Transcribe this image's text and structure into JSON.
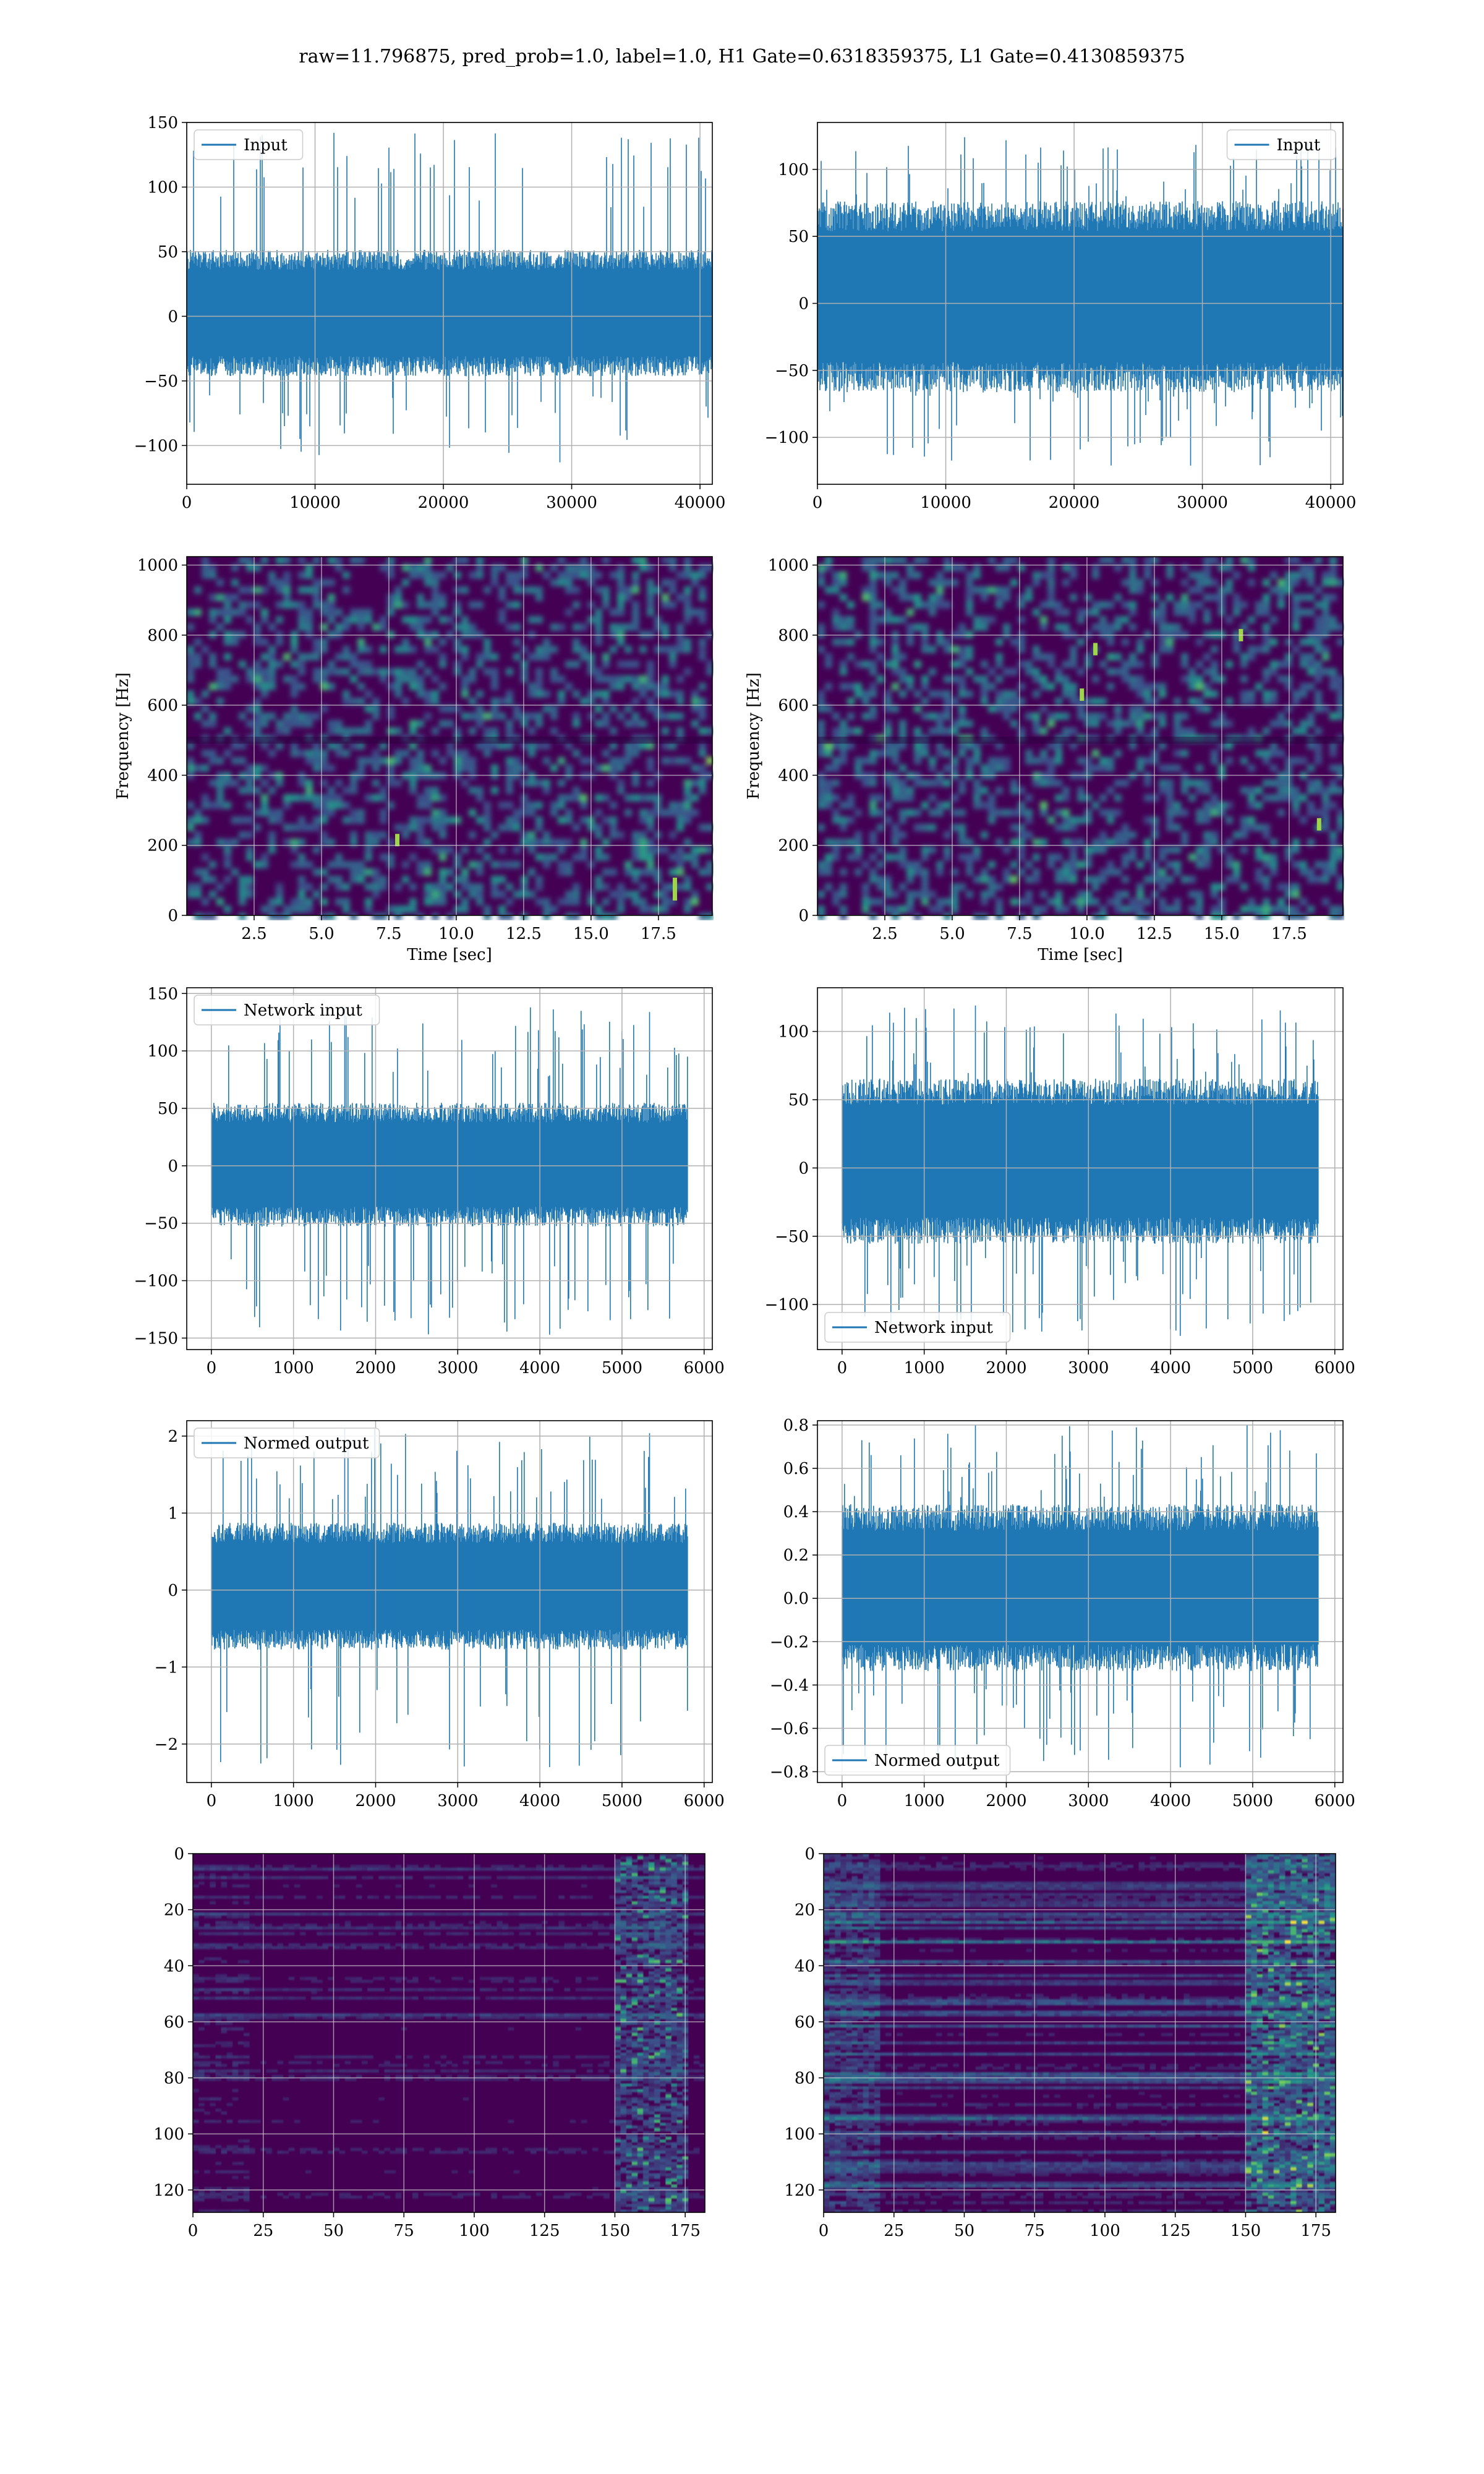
{
  "figure": {
    "suptitle": "raw=11.796875, pred_prob=1.0, label=1.0, H1 Gate=0.6318359375, L1 Gate=0.4130859375"
  },
  "colors": {
    "series": "#1f77b4",
    "grid": "#b0b0b0",
    "viridis_dark": "#440154",
    "viridis_mid": "#21918c",
    "viridis_bright": "#fde725"
  },
  "chart_data": [
    {
      "id": "input-h1",
      "type": "line",
      "legend": "Input",
      "legend_loc": "upper left",
      "xlim": [
        0,
        40960
      ],
      "ylim": [
        -130,
        150
      ],
      "xticks": [
        0,
        10000,
        20000,
        30000,
        40000
      ],
      "yticks": [
        -100,
        -50,
        0,
        50,
        100,
        150
      ],
      "xlabel": "",
      "ylabel": "",
      "envelope": {
        "body": [
          -42,
          47
        ],
        "spikes": [
          -113,
          142
        ]
      },
      "grid": true
    },
    {
      "id": "input-l1",
      "type": "line",
      "legend": "Input",
      "legend_loc": "upper right",
      "xlim": [
        0,
        40960
      ],
      "ylim": [
        -135,
        135
      ],
      "xticks": [
        0,
        10000,
        20000,
        30000,
        40000
      ],
      "yticks": [
        -100,
        -50,
        0,
        50,
        100
      ],
      "xlabel": "",
      "ylabel": "",
      "envelope": {
        "body": [
          -60,
          70
        ],
        "spikes": [
          -121,
          124
        ]
      },
      "grid": true
    },
    {
      "id": "spec-h1",
      "type": "heatmap",
      "xlim": [
        0,
        19.5
      ],
      "ylim": [
        0,
        1024
      ],
      "xticks": [
        2.5,
        5.0,
        7.5,
        10.0,
        12.5,
        15.0,
        17.5
      ],
      "yticks": [
        0,
        200,
        400,
        600,
        800,
        1000
      ],
      "xlabel": "Time [sec]",
      "ylabel": "Frequency [Hz]",
      "colormap": "viridis",
      "highlights": [
        {
          "t": 18.1,
          "f": 60
        },
        {
          "t": 18.1,
          "f": 90
        },
        {
          "t": 7.8,
          "f": 215
        }
      ],
      "grid": true
    },
    {
      "id": "spec-l1",
      "type": "heatmap",
      "xlim": [
        0,
        19.5
      ],
      "ylim": [
        0,
        1024
      ],
      "xticks": [
        2.5,
        5.0,
        7.5,
        10.0,
        12.5,
        15.0,
        17.5
      ],
      "yticks": [
        0,
        200,
        400,
        600,
        800,
        1000
      ],
      "xlabel": "Time [sec]",
      "ylabel": "Frequency [Hz]",
      "colormap": "viridis",
      "highlights": [
        {
          "t": 10.3,
          "f": 760
        },
        {
          "t": 9.8,
          "f": 630
        },
        {
          "t": 18.6,
          "f": 260
        },
        {
          "t": 15.7,
          "f": 800
        }
      ],
      "grid": true
    },
    {
      "id": "netin-h1",
      "type": "line",
      "legend": "Network input",
      "legend_loc": "upper left",
      "xlim": [
        -300,
        6100
      ],
      "ylim": [
        -160,
        155
      ],
      "xticks": [
        0,
        1000,
        2000,
        3000,
        4000,
        5000,
        6000
      ],
      "yticks": [
        -150,
        -100,
        -50,
        0,
        50,
        100,
        150
      ],
      "xlabel": "",
      "ylabel": "",
      "n": 5800,
      "envelope": {
        "body": [
          -48,
          50
        ],
        "spikes": [
          -147,
          138
        ]
      },
      "grid": true
    },
    {
      "id": "netin-l1",
      "type": "line",
      "legend": "Network input",
      "legend_loc": "lower left",
      "xlim": [
        -300,
        6100
      ],
      "ylim": [
        -133,
        132
      ],
      "xticks": [
        0,
        1000,
        2000,
        3000,
        4000,
        5000,
        6000
      ],
      "yticks": [
        -100,
        -50,
        0,
        50,
        100
      ],
      "xlabel": "",
      "ylabel": "",
      "n": 5800,
      "envelope": {
        "body": [
          -50,
          60
        ],
        "spikes": [
          -123,
          119
        ]
      },
      "grid": true
    },
    {
      "id": "normed-h1",
      "type": "line",
      "legend": "Normed output",
      "legend_loc": "upper left",
      "xlim": [
        -300,
        6100
      ],
      "ylim": [
        -2.5,
        2.2
      ],
      "xticks": [
        0,
        1000,
        2000,
        3000,
        4000,
        5000,
        6000
      ],
      "yticks": [
        -2,
        -1,
        0,
        1,
        2
      ],
      "xlabel": "",
      "ylabel": "",
      "n": 5800,
      "envelope": {
        "body": [
          -0.7,
          0.8
        ],
        "spikes": [
          -2.3,
          2.1
        ]
      },
      "grid": true
    },
    {
      "id": "normed-l1",
      "type": "line",
      "legend": "Normed output",
      "legend_loc": "lower left",
      "xlim": [
        -300,
        6100
      ],
      "ylim": [
        -0.85,
        0.82
      ],
      "xticks": [
        0,
        1000,
        2000,
        3000,
        4000,
        5000,
        6000
      ],
      "yticks": [
        -0.8,
        -0.6,
        -0.4,
        -0.2,
        0.0,
        0.2,
        0.4,
        0.6,
        0.8
      ],
      "yticklabels": [
        "−0.8",
        "−0.6",
        "−0.4",
        "−0.2",
        "0.0",
        "0.2",
        "0.4",
        "0.6",
        "0.8"
      ],
      "xlabel": "",
      "ylabel": "",
      "n": 5800,
      "envelope": {
        "body": [
          -0.3,
          0.4
        ],
        "spikes": [
          -0.78,
          0.8
        ]
      },
      "grid": true
    },
    {
      "id": "feat-h1",
      "type": "heatmap",
      "xlim": [
        0,
        182
      ],
      "ylim": [
        128,
        0
      ],
      "xticks": [
        0,
        25,
        50,
        75,
        100,
        125,
        150,
        175
      ],
      "yticks": [
        0,
        20,
        40,
        60,
        80,
        100,
        120
      ],
      "xlabel": "",
      "ylabel": "",
      "colormap": "viridis",
      "active_band": [
        150,
        175
      ],
      "grid": true
    },
    {
      "id": "feat-l1",
      "type": "heatmap",
      "xlim": [
        0,
        182
      ],
      "ylim": [
        128,
        0
      ],
      "xticks": [
        0,
        25,
        50,
        75,
        100,
        125,
        150,
        175
      ],
      "yticks": [
        0,
        20,
        40,
        60,
        80,
        100,
        120
      ],
      "xlabel": "",
      "ylabel": "",
      "colormap": "viridis",
      "active_band": [
        150,
        182
      ],
      "grid": true
    }
  ]
}
